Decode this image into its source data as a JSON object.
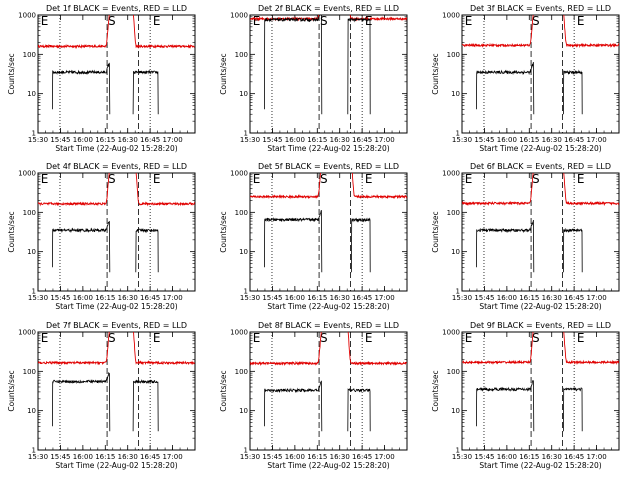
{
  "chart_data": {
    "type": "line",
    "layout": "3x3 grid",
    "xlabel": "Start Time (22-Aug-02 15:28:20)",
    "ylabel": "Counts/sec",
    "y_scale": "log",
    "ylim": [
      1,
      1000
    ],
    "y_ticks": [
      "1",
      "10",
      "100",
      "1000"
    ],
    "x_range_hours": [
      15.5,
      17.25
    ],
    "x_tick_values": [
      15.5,
      15.75,
      16.0,
      16.25,
      16.5,
      16.75,
      17.0
    ],
    "x_tick_labels": [
      "15:30",
      "15:45",
      "16:00",
      "16:15",
      "16:30",
      "16:45",
      "17:00"
    ],
    "series_colors": {
      "events": "#000000",
      "lld": "#e00000"
    },
    "markers": {
      "dotted": [
        15.745,
        16.75
      ],
      "dashed": [
        16.27,
        16.62
      ],
      "labels": [
        {
          "text": "E",
          "x": 15.53
        },
        {
          "text": "S",
          "x": 16.28
        },
        {
          "text": "E",
          "x": 16.78
        }
      ]
    },
    "panels": [
      {
        "title": "Det 1f BLACK = Events, RED = LLD",
        "lld_level": 160,
        "events_level": 35,
        "dip_start": 16.31,
        "dip_end": 16.55
      },
      {
        "title": "Det 2f BLACK = Events, RED = LLD",
        "lld_level": 800,
        "events_level": 760,
        "dip_start": 16.31,
        "dip_end": 16.58
      },
      {
        "title": "Det 3f BLACK = Events, RED = LLD",
        "lld_level": 170,
        "events_level": 35,
        "dip_start": 16.31,
        "dip_end": 16.62
      },
      {
        "title": "Det 4f BLACK = Events, RED = LLD",
        "lld_level": 165,
        "events_level": 35,
        "dip_start": 16.31,
        "dip_end": 16.58
      },
      {
        "title": "Det 5f BLACK = Events, RED = LLD",
        "lld_level": 250,
        "events_level": 65,
        "dip_start": 16.31,
        "dip_end": 16.62
      },
      {
        "title": "Det 6f BLACK = Events, RED = LLD",
        "lld_level": 170,
        "events_level": 35,
        "dip_start": 16.31,
        "dip_end": 16.62
      },
      {
        "title": "Det 7f BLACK = Events, RED = LLD",
        "lld_level": 165,
        "events_level": 55,
        "dip_start": 16.31,
        "dip_end": 16.55
      },
      {
        "title": "Det 8f BLACK = Events, RED = LLD",
        "lld_level": 160,
        "events_level": 33,
        "dip_start": 16.31,
        "dip_end": 16.58
      },
      {
        "title": "Det 9f BLACK = Events, RED = LLD",
        "lld_level": 170,
        "events_level": 35,
        "dip_start": 16.31,
        "dip_end": 16.62
      }
    ]
  }
}
